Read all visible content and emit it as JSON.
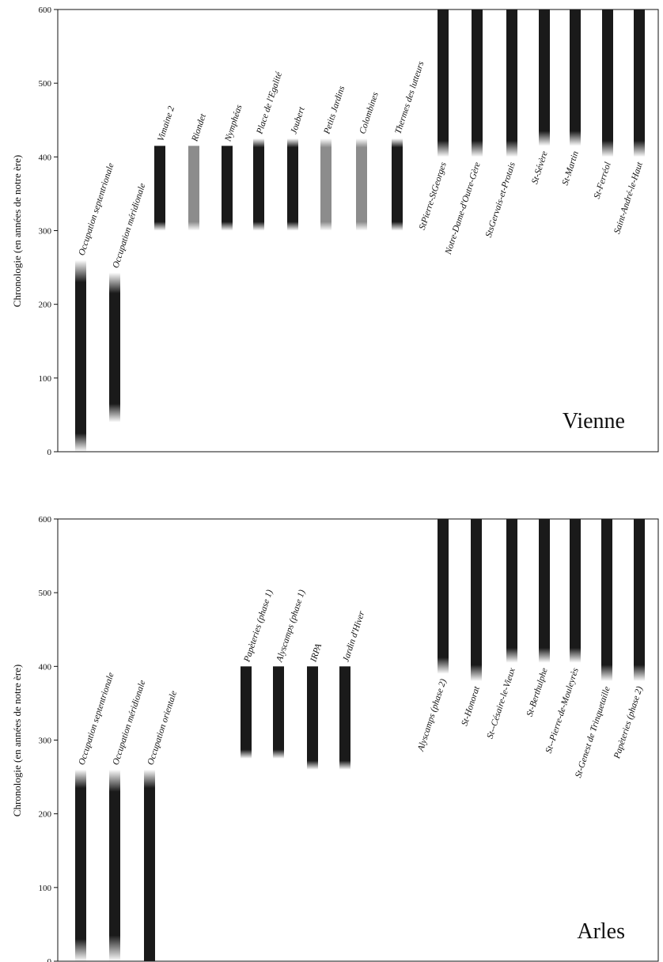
{
  "chart_data": [
    {
      "type": "bar",
      "title": "Vienne",
      "ylabel": "Chronologie (en années de notre ère)",
      "ylim": [
        0,
        600
      ],
      "yticks": [
        0,
        100,
        200,
        300,
        400,
        500,
        600
      ],
      "colors": {
        "dark": "#1a1a1a",
        "grey": "#8c8c8c"
      },
      "bars": [
        {
          "label": "Occupation septentrionale",
          "start": 0,
          "end": 260,
          "fade_start": 25,
          "fade_end": 30,
          "tone": "dark",
          "label_side": "top"
        },
        {
          "label": "Occupation méridionale",
          "start": 40,
          "end": 243,
          "fade_start": 25,
          "fade_end": 28,
          "tone": "dark",
          "label_side": "top"
        },
        {
          "label": "Vimaine 2",
          "start": 300,
          "end": 415,
          "fade_start": 12,
          "fade_end": 0,
          "tone": "dark",
          "label_side": "top"
        },
        {
          "label": "Riondet",
          "start": 300,
          "end": 415,
          "fade_start": 12,
          "fade_end": 0,
          "tone": "grey",
          "label_side": "top"
        },
        {
          "label": "Nymphéas",
          "start": 300,
          "end": 415,
          "fade_start": 12,
          "fade_end": 0,
          "tone": "dark",
          "label_side": "top"
        },
        {
          "label": "Place de l'Egalité",
          "start": 300,
          "end": 425,
          "fade_start": 12,
          "fade_end": 12,
          "tone": "dark",
          "label_side": "top"
        },
        {
          "label": "Joubert",
          "start": 300,
          "end": 425,
          "fade_start": 12,
          "fade_end": 12,
          "tone": "dark",
          "label_side": "top"
        },
        {
          "label": "Petits Jardins",
          "start": 300,
          "end": 425,
          "fade_start": 12,
          "fade_end": 12,
          "tone": "grey",
          "label_side": "top"
        },
        {
          "label": "Colombines",
          "start": 300,
          "end": 425,
          "fade_start": 12,
          "fade_end": 12,
          "tone": "grey",
          "label_side": "top"
        },
        {
          "label": "Thermes des lutteurs",
          "start": 300,
          "end": 425,
          "fade_start": 12,
          "fade_end": 12,
          "tone": "dark",
          "label_side": "top"
        },
        {
          "label": "StPierre-StGeorges",
          "start": 400,
          "end": 600,
          "fade_start": 22,
          "fade_end": 0,
          "tone": "dark",
          "label_side": "bottom"
        },
        {
          "label": "Notre-Dame-d'Outre-Gère",
          "start": 400,
          "end": 600,
          "fade_start": 22,
          "fade_end": 0,
          "tone": "dark",
          "label_side": "bottom"
        },
        {
          "label": "StsGervais-et-Protais",
          "start": 400,
          "end": 600,
          "fade_start": 22,
          "fade_end": 0,
          "tone": "dark",
          "label_side": "bottom"
        },
        {
          "label": "St-Sévère",
          "start": 415,
          "end": 600,
          "fade_start": 20,
          "fade_end": 0,
          "tone": "dark",
          "label_side": "bottom"
        },
        {
          "label": "St-Martin",
          "start": 415,
          "end": 600,
          "fade_start": 20,
          "fade_end": 0,
          "tone": "dark",
          "label_side": "bottom"
        },
        {
          "label": "St-Ferréol",
          "start": 400,
          "end": 600,
          "fade_start": 22,
          "fade_end": 0,
          "tone": "dark",
          "label_side": "bottom"
        },
        {
          "label": "Saint-André-le-Haut",
          "start": 400,
          "end": 600,
          "fade_start": 22,
          "fade_end": 0,
          "tone": "dark",
          "label_side": "bottom"
        }
      ]
    },
    {
      "type": "bar",
      "title": "Arles",
      "ylabel": "Chronologie (en années de notre ère)",
      "ylim": [
        0,
        600
      ],
      "yticks": [
        0,
        100,
        200,
        300,
        400,
        500,
        600
      ],
      "colors": {
        "dark": "#1a1a1a",
        "grey": "#8c8c8c"
      },
      "bars": [
        {
          "label": "Occupation septentrionale",
          "start": 0,
          "end": 260,
          "fade_start": 30,
          "fade_end": 25,
          "tone": "dark",
          "label_side": "top"
        },
        {
          "label": "Occupation méridionale",
          "start": 0,
          "end": 260,
          "fade_start": 35,
          "fade_end": 30,
          "tone": "dark",
          "label_side": "top"
        },
        {
          "label": "Occupation orientale",
          "start": 0,
          "end": 260,
          "fade_start": 0,
          "fade_end": 25,
          "tone": "dark",
          "label_side": "top"
        },
        {
          "label": "Papèteries (phase 1)",
          "start": 275,
          "end": 400,
          "fade_start": 12,
          "fade_end": 0,
          "tone": "dark",
          "label_side": "top"
        },
        {
          "label": "Alyscamps (phase 1)",
          "start": 275,
          "end": 400,
          "fade_start": 12,
          "fade_end": 0,
          "tone": "dark",
          "label_side": "top"
        },
        {
          "label": "IRPA",
          "start": 260,
          "end": 400,
          "fade_start": 12,
          "fade_end": 0,
          "tone": "dark",
          "label_side": "top"
        },
        {
          "label": "Jardin d'Hiver",
          "start": 260,
          "end": 400,
          "fade_start": 12,
          "fade_end": 0,
          "tone": "dark",
          "label_side": "top"
        },
        {
          "label": "Alyscamps (phase 2)",
          "start": 390,
          "end": 600,
          "fade_start": 22,
          "fade_end": 0,
          "tone": "dark",
          "label_side": "bottom"
        },
        {
          "label": "St-Honorat",
          "start": 380,
          "end": 600,
          "fade_start": 22,
          "fade_end": 0,
          "tone": "dark",
          "label_side": "bottom"
        },
        {
          "label": "St--Césaire-le-Vieux",
          "start": 405,
          "end": 600,
          "fade_start": 20,
          "fade_end": 0,
          "tone": "dark",
          "label_side": "bottom"
        },
        {
          "label": "St-Berthulphe",
          "start": 405,
          "end": 600,
          "fade_start": 20,
          "fade_end": 0,
          "tone": "dark",
          "label_side": "bottom"
        },
        {
          "label": "St--Pierre-de-Mouleyrès",
          "start": 405,
          "end": 600,
          "fade_start": 20,
          "fade_end": 0,
          "tone": "dark",
          "label_side": "bottom"
        },
        {
          "label": "St-Genest de Trinquetaille",
          "start": 380,
          "end": 600,
          "fade_start": 22,
          "fade_end": 0,
          "tone": "dark",
          "label_side": "bottom"
        },
        {
          "label": "Papèteries (phase 2)",
          "start": 380,
          "end": 600,
          "fade_start": 22,
          "fade_end": 0,
          "tone": "dark",
          "label_side": "bottom"
        }
      ]
    }
  ]
}
